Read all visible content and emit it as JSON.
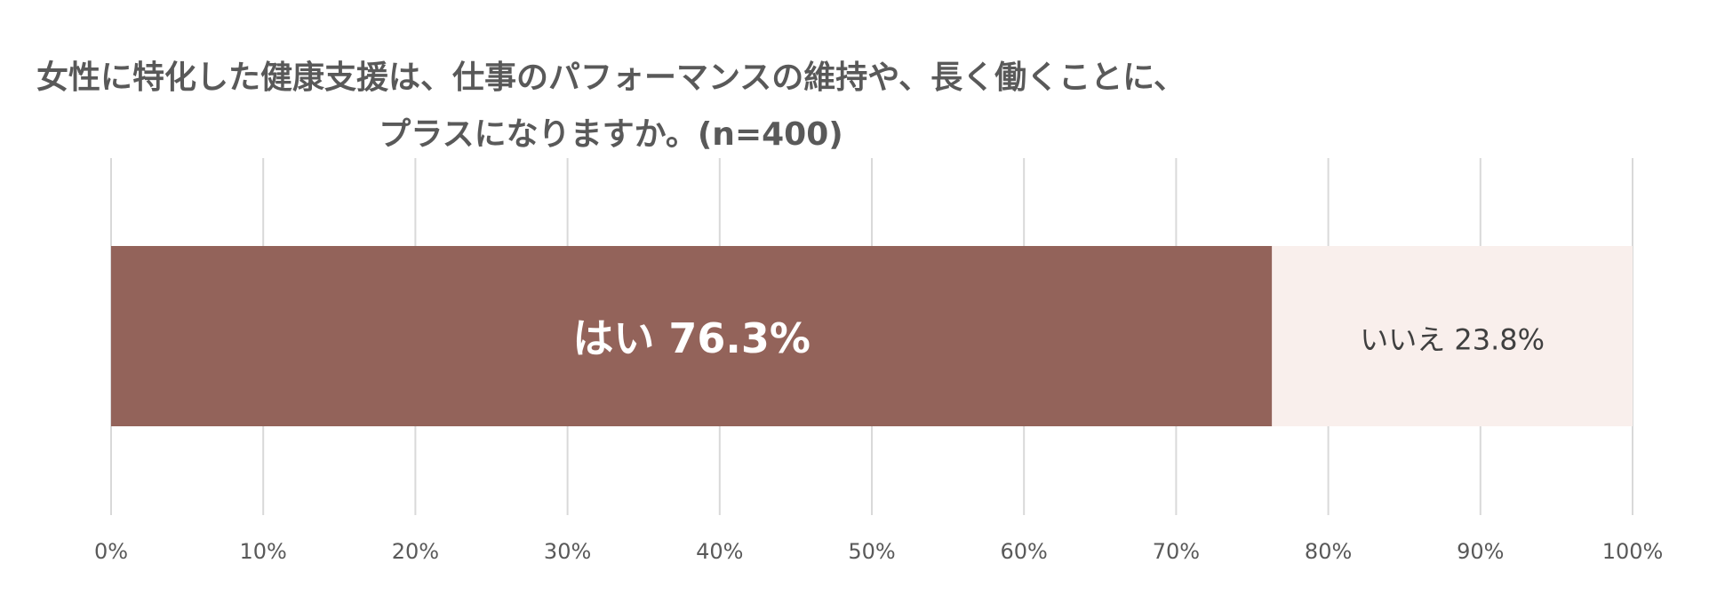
{
  "chart_data": {
    "type": "bar",
    "orientation": "horizontal",
    "stacked": true,
    "title_lines": [
      "女性に特化した健康支援は、仕事のパフォーマンスの維持や、長く働くことに、",
      "プラスになりますか。(n=400)"
    ],
    "xlim": [
      0,
      100
    ],
    "x_ticks": [
      0,
      10,
      20,
      30,
      40,
      50,
      60,
      70,
      80,
      90,
      100
    ],
    "x_tick_labels": [
      "0%",
      "10%",
      "20%",
      "30%",
      "40%",
      "50%",
      "60%",
      "70%",
      "80%",
      "90%",
      "100%"
    ],
    "grid": true,
    "series": [
      {
        "name": "はい",
        "value": 76.3,
        "label": "はい 76.3%",
        "color": "#93635A",
        "label_color": "#FFFFFF"
      },
      {
        "name": "いいえ",
        "value": 23.8,
        "label": "いいえ 23.8%",
        "color": "#F9EFEC",
        "label_color": "#404040"
      }
    ]
  }
}
